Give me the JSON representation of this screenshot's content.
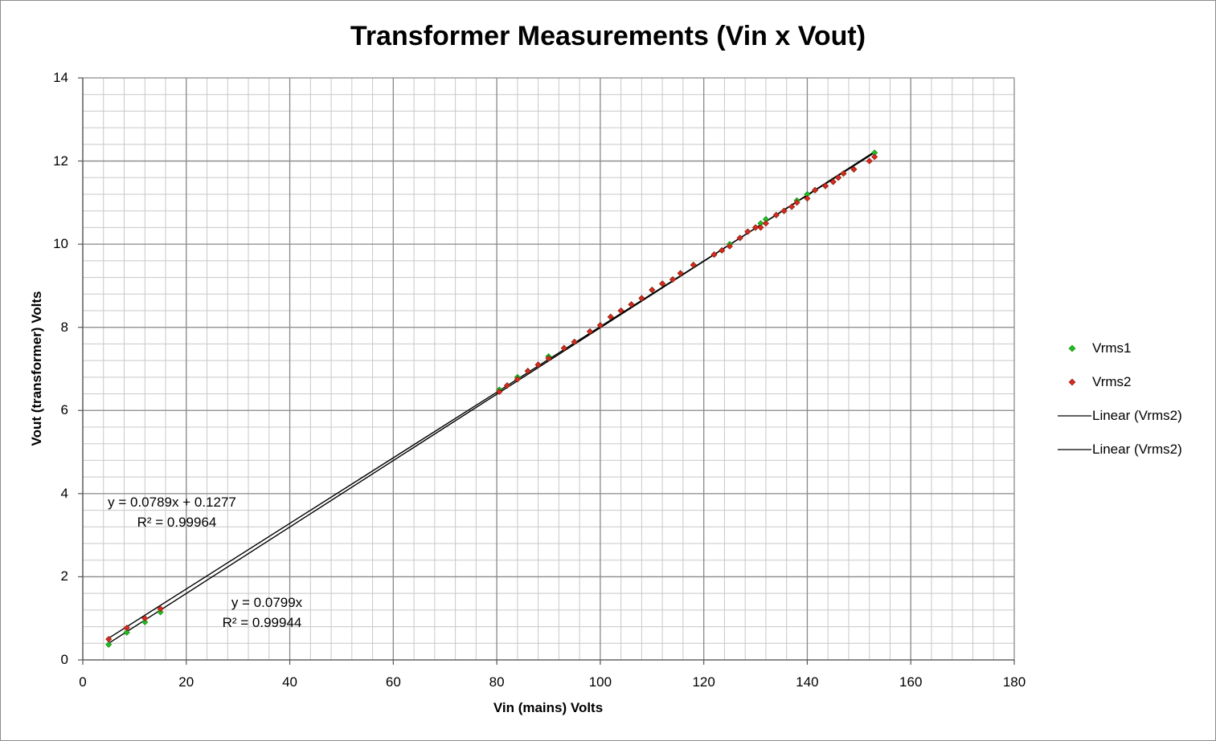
{
  "chart_data": {
    "type": "scatter",
    "title": "Transformer Measurements (Vin x Vout)",
    "xlabel": "Vin (mains) Volts",
    "ylabel": "Vout (transformer) Volts",
    "xlim": [
      0,
      180
    ],
    "ylim": [
      0,
      14
    ],
    "x_major_step": 20,
    "y_major_step": 2,
    "x_minor_step": 4,
    "y_minor_step": 0.4,
    "grid": true,
    "legend_position": "right",
    "x_ticks": [
      "0",
      "20",
      "40",
      "60",
      "80",
      "100",
      "120",
      "140",
      "160",
      "180"
    ],
    "y_ticks": [
      "0",
      "2",
      "4",
      "6",
      "8",
      "10",
      "12",
      "14"
    ],
    "series": [
      {
        "name": "Vrms1",
        "color": "#1fbf1f",
        "points": [
          [
            5,
            0.37
          ],
          [
            8.5,
            0.66
          ],
          [
            12,
            0.91
          ],
          [
            15,
            1.15
          ],
          [
            80.5,
            6.5
          ],
          [
            82,
            6.6
          ],
          [
            84,
            6.8
          ],
          [
            86,
            6.95
          ],
          [
            88,
            7.1
          ],
          [
            90,
            7.3
          ],
          [
            93,
            7.5
          ],
          [
            95,
            7.65
          ],
          [
            98,
            7.9
          ],
          [
            100,
            8.05
          ],
          [
            102,
            8.25
          ],
          [
            104,
            8.4
          ],
          [
            106,
            8.55
          ],
          [
            108,
            8.7
          ],
          [
            110,
            8.9
          ],
          [
            112,
            9.05
          ],
          [
            114,
            9.15
          ],
          [
            115.5,
            9.3
          ],
          [
            118,
            9.5
          ],
          [
            122,
            9.75
          ],
          [
            123.5,
            9.85
          ],
          [
            125,
            10.0
          ],
          [
            127,
            10.15
          ],
          [
            128.5,
            10.3
          ],
          [
            130,
            10.4
          ],
          [
            131,
            10.5
          ],
          [
            132,
            10.6
          ],
          [
            134,
            10.7
          ],
          [
            135.5,
            10.8
          ],
          [
            137,
            10.9
          ],
          [
            138,
            11.05
          ],
          [
            140,
            11.2
          ],
          [
            141.5,
            11.3
          ],
          [
            143.5,
            11.4
          ],
          [
            145,
            11.5
          ],
          [
            146,
            11.6
          ],
          [
            147,
            11.7
          ],
          [
            149,
            11.8
          ],
          [
            153,
            12.2
          ]
        ]
      },
      {
        "name": "Vrms2",
        "color": "#d42b1f",
        "points": [
          [
            5,
            0.5
          ],
          [
            8.5,
            0.77
          ],
          [
            12,
            1.0
          ],
          [
            15,
            1.23
          ],
          [
            80.5,
            6.45
          ],
          [
            82,
            6.6
          ],
          [
            84,
            6.75
          ],
          [
            86,
            6.95
          ],
          [
            88,
            7.1
          ],
          [
            90,
            7.25
          ],
          [
            93,
            7.5
          ],
          [
            95,
            7.65
          ],
          [
            98,
            7.9
          ],
          [
            100,
            8.05
          ],
          [
            102,
            8.25
          ],
          [
            104,
            8.4
          ],
          [
            106,
            8.55
          ],
          [
            108,
            8.7
          ],
          [
            110,
            8.9
          ],
          [
            112,
            9.05
          ],
          [
            114,
            9.15
          ],
          [
            115.5,
            9.3
          ],
          [
            118,
            9.5
          ],
          [
            122,
            9.75
          ],
          [
            123.5,
            9.85
          ],
          [
            125,
            9.95
          ],
          [
            127,
            10.15
          ],
          [
            128.5,
            10.3
          ],
          [
            130,
            10.4
          ],
          [
            131,
            10.4
          ],
          [
            132,
            10.5
          ],
          [
            134,
            10.7
          ],
          [
            135.5,
            10.8
          ],
          [
            137,
            10.9
          ],
          [
            138,
            11.0
          ],
          [
            140,
            11.1
          ],
          [
            141.5,
            11.3
          ],
          [
            143.5,
            11.4
          ],
          [
            145,
            11.5
          ],
          [
            146,
            11.6
          ],
          [
            147,
            11.7
          ],
          [
            149,
            11.8
          ],
          [
            152,
            12.0
          ],
          [
            153,
            12.1
          ]
        ]
      }
    ],
    "trendlines": [
      {
        "name": "Linear (Vrms2)",
        "slope": 0.0789,
        "intercept": 0.1277,
        "x_range": [
          5,
          153
        ],
        "equation": "y = 0.0789x + 0.1277",
        "r2": "R² = 0.99964"
      },
      {
        "name": "Linear (Vrms2)",
        "slope": 0.0799,
        "intercept": 0,
        "x_range": [
          5,
          153
        ],
        "equation": "y = 0.0799x",
        "r2": "R² = 0.99944"
      }
    ],
    "legend": [
      "Vrms1",
      "Vrms2",
      "Linear (Vrms2)",
      "Linear (Vrms2)"
    ]
  }
}
